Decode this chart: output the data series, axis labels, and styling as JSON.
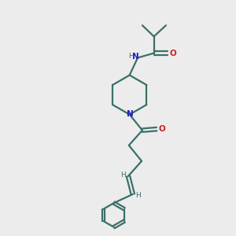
{
  "bg_color": "#ececec",
  "bond_color": "#3a7068",
  "N_color": "#2020bb",
  "O_color": "#cc2020",
  "line_width": 1.6,
  "figsize": [
    3.0,
    3.0
  ],
  "dpi": 100,
  "xlim": [
    0,
    10
  ],
  "ylim": [
    0,
    10
  ]
}
